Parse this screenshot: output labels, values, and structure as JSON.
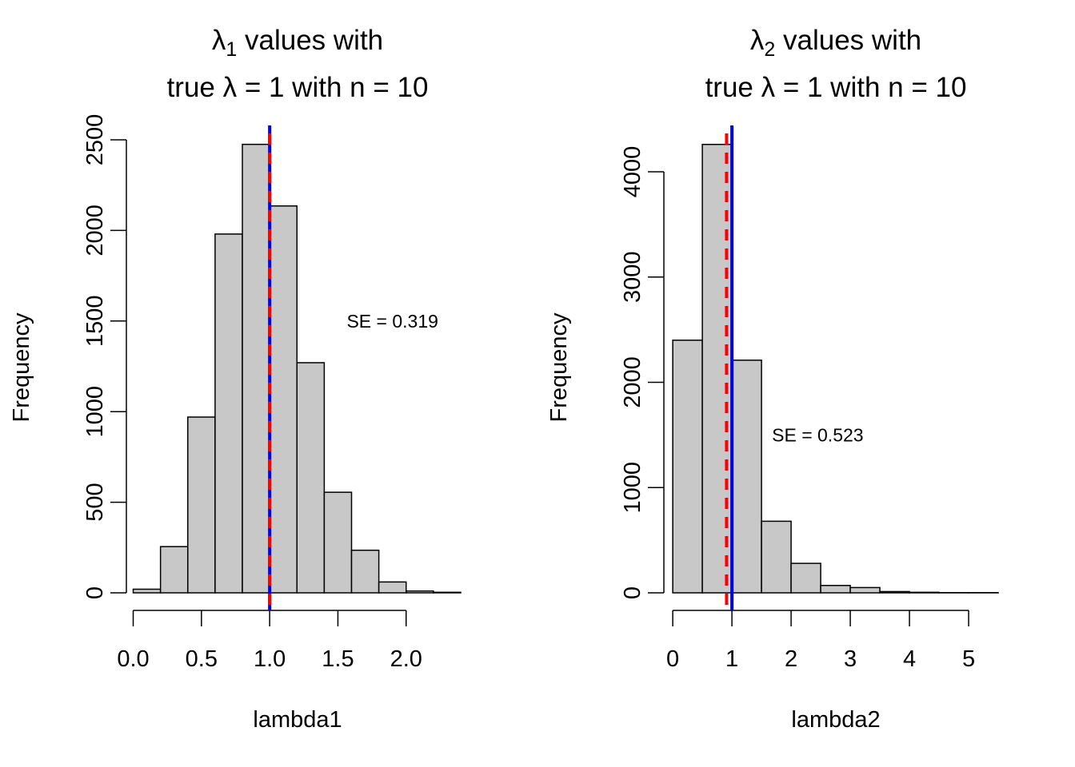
{
  "colors": {
    "bar_fill": "#c8c8c8",
    "bar_stroke": "#000000",
    "true_line": "#0000ff",
    "mean_line": "#ff0000"
  },
  "chart_data": [
    {
      "type": "bar",
      "title": {
        "symbol": "λ",
        "subscript": "1",
        "line1_rest": " values with",
        "line2": "true  λ = 1  with n =  10"
      },
      "xlabel": "lambda1",
      "ylabel": "Frequency",
      "bin_width": 0.2,
      "bin_edges": [
        0.0,
        0.2,
        0.4,
        0.6,
        0.8,
        1.0,
        1.2,
        1.4,
        1.6,
        1.8,
        2.0,
        2.2,
        2.4
      ],
      "values": [
        20,
        255,
        970,
        1980,
        2475,
        2135,
        1270,
        555,
        235,
        60,
        10,
        3
      ],
      "xlim": [
        -0.05,
        2.4
      ],
      "ylim": [
        0,
        2500
      ],
      "xticks": [
        "0.0",
        "0.5",
        "1.0",
        "1.5",
        "2.0"
      ],
      "xtick_values": [
        0,
        0.5,
        1.0,
        1.5,
        2.0
      ],
      "yticks": [
        "0",
        "500",
        "1000",
        "1500",
        "2000",
        "2500"
      ],
      "ytick_values": [
        0,
        500,
        1000,
        1500,
        2000,
        2500
      ],
      "true_value": 1.0,
      "mean_value": 1.0,
      "annotation": {
        "text": "SE = 0.319",
        "x": 1.9,
        "y": 1500
      }
    },
    {
      "type": "bar",
      "title": {
        "symbol": "λ",
        "subscript": "2",
        "line1_rest": " values with",
        "line2": "true  λ = 1  with n =  10"
      },
      "xlabel": "lambda2",
      "ylabel": "Frequency",
      "bin_width": 0.5,
      "bin_edges": [
        0,
        0.5,
        1.0,
        1.5,
        2.0,
        2.5,
        3.0,
        3.5,
        4.0,
        4.5,
        5.0,
        5.5
      ],
      "values": [
        2400,
        4260,
        2210,
        680,
        280,
        70,
        50,
        12,
        5,
        2,
        2
      ],
      "xlim": [
        -0.15,
        5.5
      ],
      "ylim": [
        0,
        4300
      ],
      "xticks": [
        "0",
        "1",
        "2",
        "3",
        "4",
        "5"
      ],
      "xtick_values": [
        0,
        1,
        2,
        3,
        4,
        5
      ],
      "yticks": [
        "0",
        "1000",
        "2000",
        "3000",
        "4000"
      ],
      "ytick_values": [
        0,
        1000,
        2000,
        3000,
        4000
      ],
      "true_value": 1.0,
      "mean_value": 0.91,
      "annotation": {
        "text": "SE = 0.523",
        "x": 2.45,
        "y": 1500
      }
    }
  ]
}
